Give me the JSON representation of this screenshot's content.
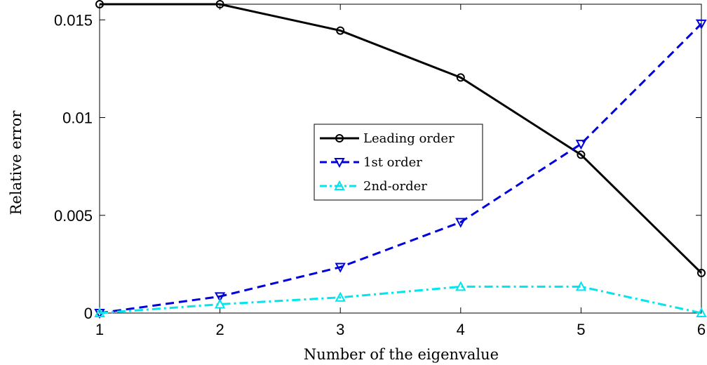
{
  "chart_data": {
    "type": "line",
    "title": "",
    "xlabel": "Number of the eigenvalue",
    "ylabel": "Relative error",
    "x": [
      1,
      2,
      3,
      4,
      5,
      6
    ],
    "xlim": [
      1,
      6
    ],
    "ylim": [
      0,
      0.0158
    ],
    "xticks": [
      1,
      2,
      3,
      4,
      5,
      6
    ],
    "yticks": [
      0,
      0.005,
      0.01,
      0.015
    ],
    "ytick_labels": [
      "0",
      "0.005",
      "0.01",
      "0.015"
    ],
    "grid": false,
    "legend_position": "center-right",
    "series": [
      {
        "name": "Leading order",
        "values": [
          0.0158,
          0.0158,
          0.01445,
          0.01205,
          0.0081,
          0.00205
        ],
        "color": "#000000",
        "line": "solid",
        "marker": "circle"
      },
      {
        "name": "1st order",
        "values": [
          0.0,
          0.00085,
          0.00235,
          0.00465,
          0.00865,
          0.0148
        ],
        "color": "#0000dd",
        "line": "dashed",
        "marker": "triangle-down"
      },
      {
        "name": "2nd-order",
        "values": [
          0.0,
          0.00045,
          0.0008,
          0.00135,
          0.00135,
          0.0
        ],
        "color": "#00e5ee",
        "line": "dashdot",
        "marker": "triangle-up"
      }
    ]
  }
}
